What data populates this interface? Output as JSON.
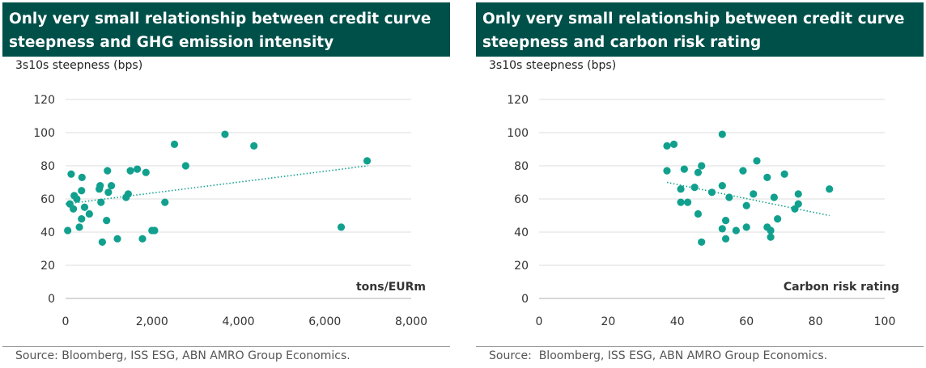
{
  "chart_data": [
    {
      "type": "scatter",
      "title": "Only very small relationship between credit curve steepness and GHG emission intensity",
      "ylabel": "3s10s steepness (bps)",
      "xlabel": "tons/EURm",
      "xlim": [
        0,
        8000
      ],
      "ylim": [
        0,
        120
      ],
      "xticks": [
        0,
        2000,
        4000,
        6000,
        8000
      ],
      "xtick_labels": [
        "0",
        "2,000",
        "4,000",
        "6,000",
        "8,000"
      ],
      "yticks": [
        0,
        20,
        40,
        60,
        80,
        100,
        120
      ],
      "ytick_labels": [
        "0",
        "20",
        "40",
        "60",
        "80",
        "100",
        "120"
      ],
      "grid": "horizontal",
      "point_color": "#12a08e",
      "trend_color": "#12a08e",
      "points": [
        {
          "x": 130,
          "y": 75
        },
        {
          "x": 50,
          "y": 41
        },
        {
          "x": 100,
          "y": 57
        },
        {
          "x": 180,
          "y": 54
        },
        {
          "x": 200,
          "y": 62
        },
        {
          "x": 260,
          "y": 60
        },
        {
          "x": 320,
          "y": 43
        },
        {
          "x": 370,
          "y": 65
        },
        {
          "x": 380,
          "y": 73
        },
        {
          "x": 370,
          "y": 48
        },
        {
          "x": 440,
          "y": 55
        },
        {
          "x": 550,
          "y": 51
        },
        {
          "x": 780,
          "y": 66
        },
        {
          "x": 800,
          "y": 68
        },
        {
          "x": 820,
          "y": 58
        },
        {
          "x": 850,
          "y": 34
        },
        {
          "x": 950,
          "y": 47
        },
        {
          "x": 970,
          "y": 77
        },
        {
          "x": 990,
          "y": 64
        },
        {
          "x": 1060,
          "y": 68
        },
        {
          "x": 1200,
          "y": 36
        },
        {
          "x": 1400,
          "y": 61
        },
        {
          "x": 1450,
          "y": 63
        },
        {
          "x": 1500,
          "y": 77
        },
        {
          "x": 1660,
          "y": 78
        },
        {
          "x": 1780,
          "y": 36
        },
        {
          "x": 1860,
          "y": 76
        },
        {
          "x": 2000,
          "y": 41
        },
        {
          "x": 2060,
          "y": 41
        },
        {
          "x": 2300,
          "y": 58
        },
        {
          "x": 2520,
          "y": 93
        },
        {
          "x": 2780,
          "y": 80
        },
        {
          "x": 3690,
          "y": 99
        },
        {
          "x": 4360,
          "y": 92
        },
        {
          "x": 6380,
          "y": 43
        },
        {
          "x": 6980,
          "y": 83
        }
      ],
      "trendline": {
        "x": [
          0,
          7000
        ],
        "y": [
          57,
          80
        ]
      }
    },
    {
      "type": "scatter",
      "title": "Only very small relationship between credit curve steepness and carbon risk rating",
      "ylabel": "3s10s steepness (bps)",
      "xlabel": "Carbon risk rating",
      "xlim": [
        0,
        100
      ],
      "ylim": [
        0,
        120
      ],
      "xticks": [
        0,
        20,
        40,
        60,
        80,
        100
      ],
      "xtick_labels": [
        "0",
        "20",
        "40",
        "60",
        "80",
        "100"
      ],
      "yticks": [
        0,
        20,
        40,
        60,
        80,
        100,
        120
      ],
      "ytick_labels": [
        "0",
        "20",
        "40",
        "60",
        "80",
        "100",
        "120"
      ],
      "grid": "horizontal",
      "point_color": "#12a08e",
      "trend_color": "#12a08e",
      "points": [
        {
          "x": 37,
          "y": 92
        },
        {
          "x": 39,
          "y": 93
        },
        {
          "x": 37,
          "y": 77
        },
        {
          "x": 41,
          "y": 66
        },
        {
          "x": 41,
          "y": 58
        },
        {
          "x": 43,
          "y": 58
        },
        {
          "x": 42,
          "y": 78
        },
        {
          "x": 45,
          "y": 67
        },
        {
          "x": 46,
          "y": 76
        },
        {
          "x": 47,
          "y": 80
        },
        {
          "x": 46,
          "y": 51
        },
        {
          "x": 47,
          "y": 34
        },
        {
          "x": 50,
          "y": 64
        },
        {
          "x": 53,
          "y": 99
        },
        {
          "x": 53,
          "y": 68
        },
        {
          "x": 53,
          "y": 42
        },
        {
          "x": 54,
          "y": 47
        },
        {
          "x": 54,
          "y": 36
        },
        {
          "x": 55,
          "y": 61
        },
        {
          "x": 57,
          "y": 41
        },
        {
          "x": 59,
          "y": 77
        },
        {
          "x": 60,
          "y": 56
        },
        {
          "x": 60,
          "y": 43
        },
        {
          "x": 62,
          "y": 63
        },
        {
          "x": 63,
          "y": 83
        },
        {
          "x": 66,
          "y": 73
        },
        {
          "x": 66,
          "y": 43
        },
        {
          "x": 67,
          "y": 41
        },
        {
          "x": 67,
          "y": 37
        },
        {
          "x": 68,
          "y": 61
        },
        {
          "x": 69,
          "y": 48
        },
        {
          "x": 71,
          "y": 75
        },
        {
          "x": 74,
          "y": 54
        },
        {
          "x": 75,
          "y": 57
        },
        {
          "x": 75,
          "y": 63
        },
        {
          "x": 84,
          "y": 66
        }
      ],
      "trendline": {
        "x": [
          37,
          84
        ],
        "y": [
          70,
          50
        ]
      }
    }
  ],
  "source": "Source: Bloomberg, ISS ESG, ABN AMRO Group Economics.",
  "source_right": "Source:  Bloomberg, ISS ESG, ABN AMRO Group Economics.",
  "colors": {
    "banner": "#00504a",
    "points": "#12a08e",
    "grid": "#dddddd"
  }
}
